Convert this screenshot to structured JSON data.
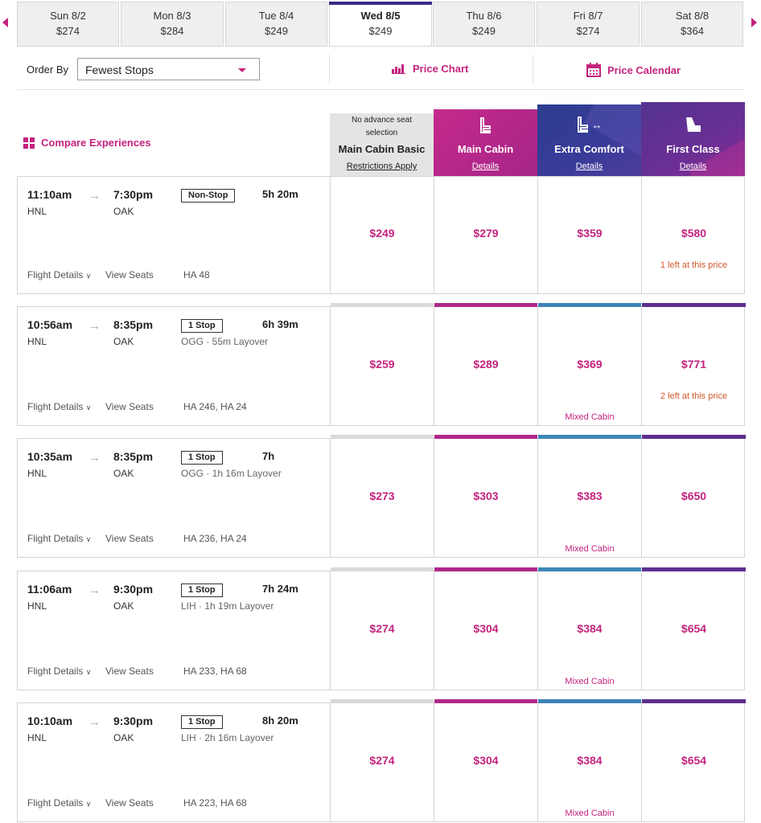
{
  "dates": [
    {
      "day": "Sun 8/2",
      "price": "$274"
    },
    {
      "day": "Mon 8/3",
      "price": "$284"
    },
    {
      "day": "Tue 8/4",
      "price": "$249"
    },
    {
      "day": "Wed 8/5",
      "price": "$249",
      "active": true
    },
    {
      "day": "Thu 8/6",
      "price": "$249"
    },
    {
      "day": "Fri 8/7",
      "price": "$274"
    },
    {
      "day": "Sat 8/8",
      "price": "$364"
    }
  ],
  "order": {
    "label": "Order By",
    "selected": "Fewest Stops"
  },
  "links": {
    "price_chart": "Price Chart",
    "price_calendar": "Price Calendar"
  },
  "compare_label": "Compare Experiences",
  "cabins": {
    "basic": {
      "sub1": "No advance seat",
      "sub2": "selection",
      "title": "Main Cabin Basic",
      "details": "Restrictions Apply"
    },
    "main": {
      "title": "Main Cabin",
      "details": "Details"
    },
    "extra": {
      "title": "Extra Comfort",
      "details": "Details"
    },
    "first": {
      "title": "First Class",
      "details": "Details"
    }
  },
  "colors": {
    "accent": "#c4237e",
    "basic_bar": "#d9d9d9",
    "main_bar": "#b0288a",
    "extra_bar": "#3c86b7",
    "first_bar": "#5e2f8e"
  },
  "common": {
    "flight_details": "Flight Details",
    "view_seats": "View Seats",
    "mixed_cabin": "Mixed Cabin"
  },
  "flights": [
    {
      "dep": "11:10am",
      "arr": "7:30pm",
      "from": "HNL",
      "to": "OAK",
      "stops": "Non-Stop",
      "duration": "5h 20m",
      "layover": "",
      "numbers": "HA 48",
      "fares": [
        "$249",
        "$279",
        "$359",
        "$580"
      ],
      "first_note": "1 left at this price",
      "mixed": false
    },
    {
      "dep": "10:56am",
      "arr": "8:35pm",
      "from": "HNL",
      "to": "OAK",
      "stops": "1 Stop",
      "duration": "6h 39m",
      "layover": "OGG · 55m Layover",
      "numbers": "HA 246, HA 24",
      "fares": [
        "$259",
        "$289",
        "$369",
        "$771"
      ],
      "first_note": "2 left at this price",
      "mixed": true
    },
    {
      "dep": "10:35am",
      "arr": "8:35pm",
      "from": "HNL",
      "to": "OAK",
      "stops": "1 Stop",
      "duration": "7h",
      "layover": "OGG · 1h 16m Layover",
      "numbers": "HA 236, HA 24",
      "fares": [
        "$273",
        "$303",
        "$383",
        "$650"
      ],
      "first_note": "",
      "mixed": true
    },
    {
      "dep": "11:06am",
      "arr": "9:30pm",
      "from": "HNL",
      "to": "OAK",
      "stops": "1 Stop",
      "duration": "7h 24m",
      "layover": "LIH · 1h 19m Layover",
      "numbers": "HA 233, HA 68",
      "fares": [
        "$274",
        "$304",
        "$384",
        "$654"
      ],
      "first_note": "",
      "mixed": true
    },
    {
      "dep": "10:10am",
      "arr": "9:30pm",
      "from": "HNL",
      "to": "OAK",
      "stops": "1 Stop",
      "duration": "8h 20m",
      "layover": "LIH · 2h 16m Layover",
      "numbers": "HA 223, HA 68",
      "fares": [
        "$274",
        "$304",
        "$384",
        "$654"
      ],
      "first_note": "",
      "mixed": true
    }
  ]
}
